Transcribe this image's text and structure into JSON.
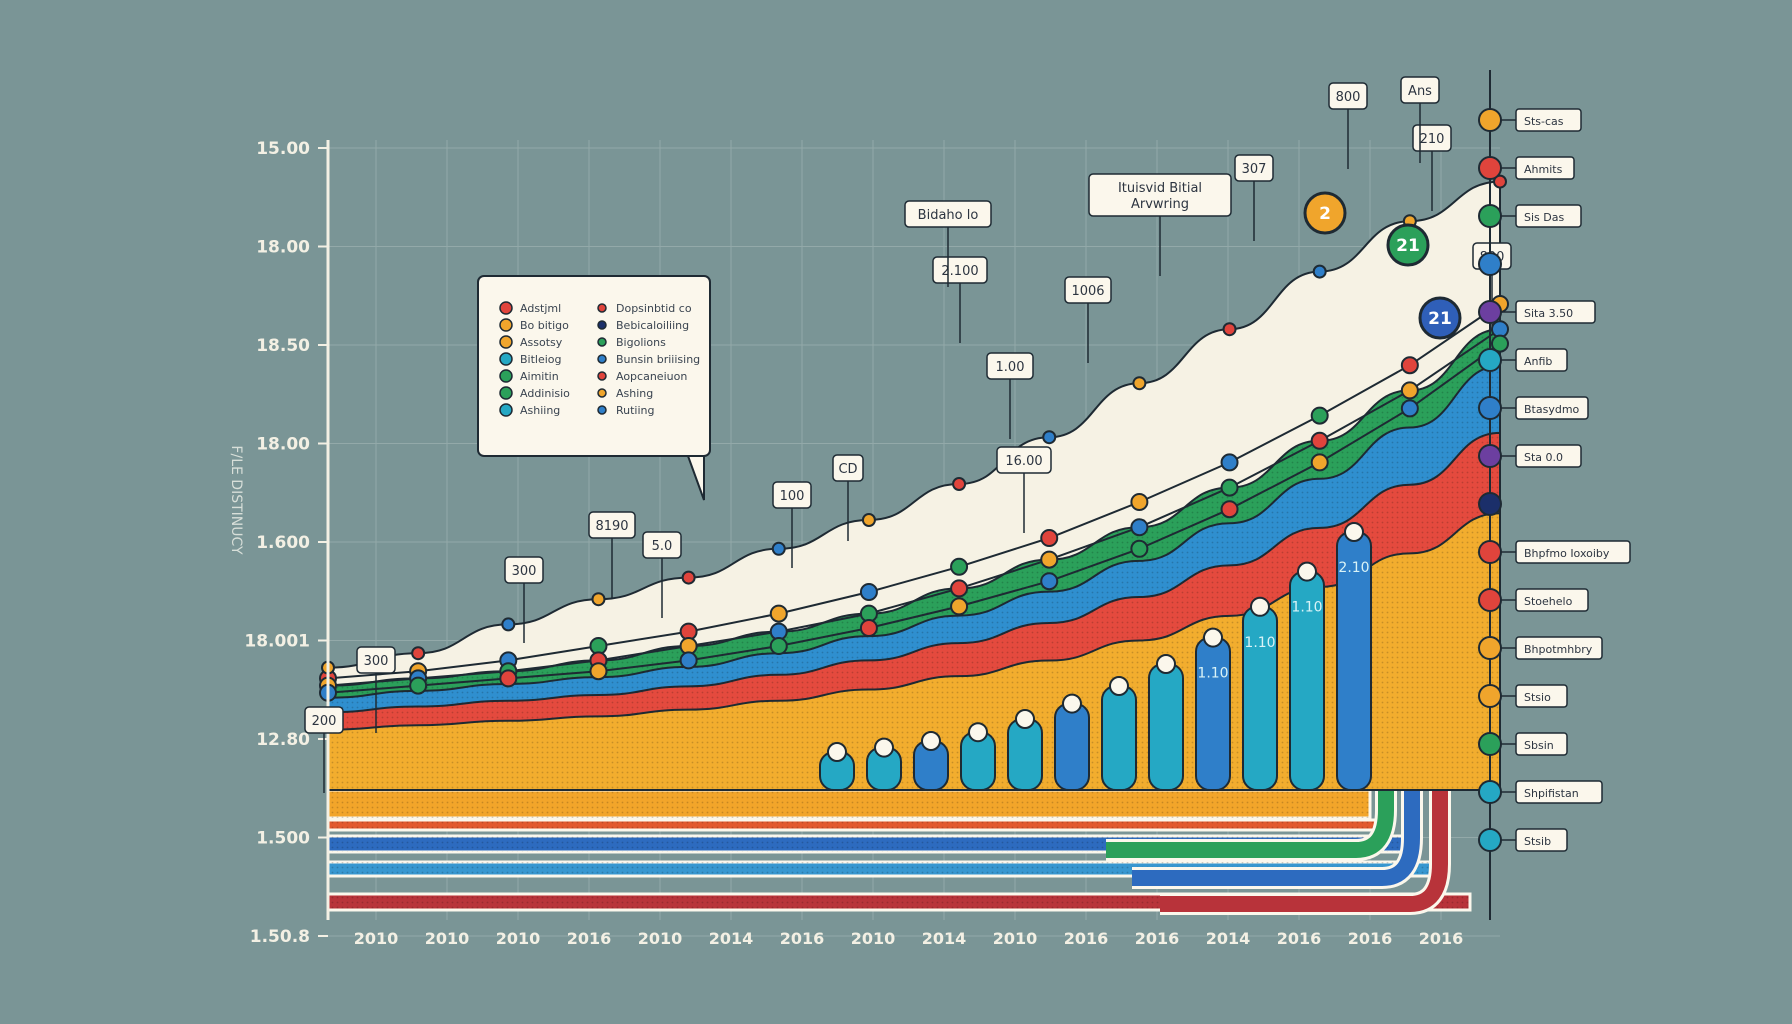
{
  "chart_data": {
    "type": "area",
    "title": "",
    "ylabel": "F/LE DISTINUCY",
    "xlabel": "",
    "y_ticks": [
      "15.00",
      "18.00",
      "18.50",
      "18.00",
      "1.600",
      "18.001",
      "12.80",
      "1.500",
      "1.50.8"
    ],
    "x_ticks": [
      "2010",
      "2010",
      "2010",
      "2016",
      "2010",
      "2014",
      "2016",
      "2010",
      "2014",
      "2010",
      "2016",
      "2016",
      "2014",
      "2016",
      "2016",
      "2016"
    ],
    "grid": true,
    "legend_position": "top-left",
    "legend": [
      {
        "label": "Adstjml",
        "color": "#e0443c"
      },
      {
        "label": "Bo bitigo",
        "color": "#f0a52c"
      },
      {
        "label": "Assotsy",
        "color": "#f0a52c"
      },
      {
        "label": "Bitleiog",
        "color": "#25a8c4"
      },
      {
        "label": "Aimitin",
        "color": "#2ba05a"
      },
      {
        "label": "Addinisio",
        "color": "#2ba05a"
      },
      {
        "label": "Ashiing",
        "color": "#25a8c4"
      },
      {
        "label": "Dopsinbtid co",
        "color": "#e0443c"
      },
      {
        "label": "Bebicaloiliing",
        "color": "#1b2f6a"
      },
      {
        "label": "Bigolions",
        "color": "#2ba05a"
      },
      {
        "label": "Bunsin briiising",
        "color": "#2f7fc9"
      },
      {
        "label": "Aopcaneiuon",
        "color": "#e0443c"
      },
      {
        "label": "Ashing",
        "color": "#f0a52c"
      },
      {
        "label": "Rutiing",
        "color": "#2f7fc9"
      }
    ],
    "area_top": [
      3.4,
      3.8,
      4.6,
      5.3,
      5.9,
      6.7,
      7.5,
      8.5,
      9.8,
      11.3,
      12.8,
      14.4,
      15.8,
      16.9
    ],
    "series": [
      {
        "color": "#e0443c",
        "values": [
          3.1,
          3.3,
          3.6,
          4.0,
          4.4,
          4.9,
          5.5,
          6.2,
          7.0,
          8.0,
          9.1,
          10.4,
          11.8,
          13.5
        ]
      },
      {
        "color": "#2ba05a",
        "values": [
          2.9,
          3.1,
          3.3,
          3.6,
          4.0,
          4.4,
          4.9,
          5.6,
          6.4,
          7.3,
          8.4,
          9.7,
          11.1,
          12.8
        ]
      },
      {
        "color": "#2f7fc9",
        "values": [
          2.7,
          2.9,
          3.1,
          3.3,
          3.6,
          4.0,
          4.5,
          5.1,
          5.8,
          6.7,
          7.8,
          9.1,
          10.6,
          12.4
        ]
      }
    ],
    "bars": {
      "values": [
        1.0,
        1.2,
        1.5,
        1.9,
        2.5,
        3.2,
        4.0,
        5.0,
        6.2,
        7.6,
        9.2,
        11.0
      ],
      "labels": [
        "",
        "",
        "",
        "",
        "",
        "",
        "",
        "",
        "1.10",
        "1.10",
        "1.10",
        "2.10"
      ]
    },
    "callouts": [
      "200",
      "300",
      "300",
      "8190",
      "5.0",
      "100",
      "CD",
      "16.00",
      "1.00",
      "2.100",
      "Bidaho lo",
      "1006",
      "Ituisvid Bitial Arvwring",
      "307",
      "800",
      "210",
      "800",
      "Ans"
    ],
    "side_legend": [
      "Sts-cas",
      "Ahmits",
      "Sis Das",
      "",
      "Sita 3.50",
      "Anfib",
      "Btasydmo",
      "Sta 0.0",
      "",
      "Bhpfmo Ioxoiby",
      "Stoehelo",
      "Bhpotmhbry",
      "Stsio",
      "Sbsin",
      "Shpifistan",
      "Stsib"
    ],
    "side_colors": [
      "#f0a52c",
      "#e0443c",
      "#2ba05a",
      "#2f7fc9",
      "#6c3fa0",
      "#25a8c4",
      "#2f7fc9",
      "#6c3fa0",
      "#1b2f6a",
      "#e0443c",
      "#e0443c",
      "#f0a52c",
      "#f0a52c",
      "#2ba05a",
      "#25a8c4",
      "#25a8c4"
    ],
    "big_badges": [
      "2",
      "21",
      "21"
    ]
  }
}
